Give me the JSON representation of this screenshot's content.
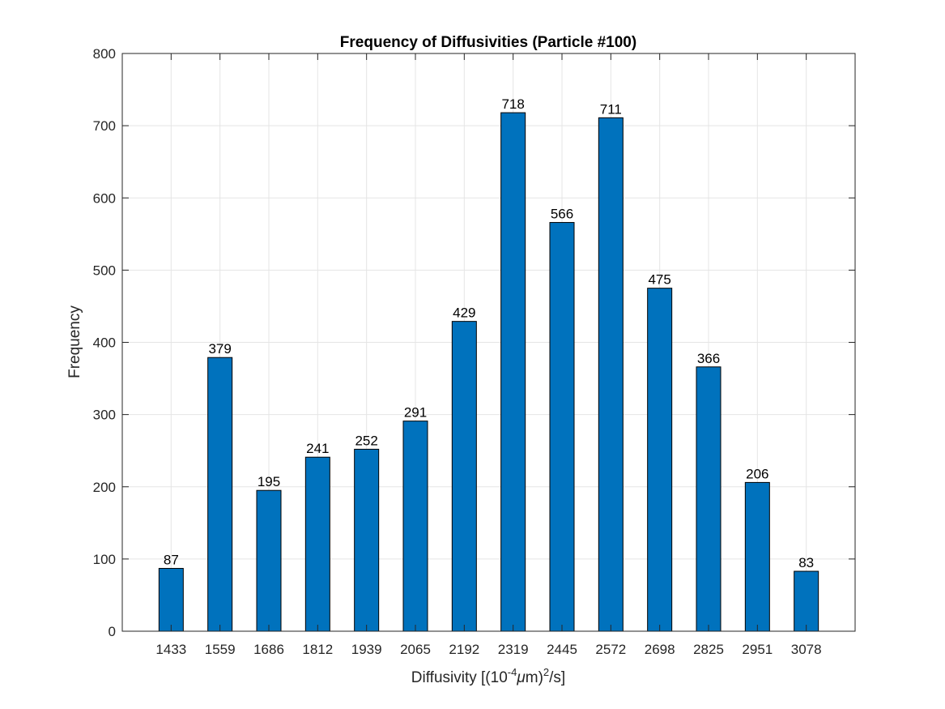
{
  "chart_data": {
    "type": "bar",
    "title": "Frequency of Diffusivities (Particle #100)",
    "xlabel": {
      "prefix": "Diffusivity [(10",
      "exponent": "-4",
      "mu": "μ",
      "middle": "m)",
      "power": "2",
      "suffix": "/s]"
    },
    "ylabel": "Frequency",
    "categories": [
      "1433",
      "1559",
      "1686",
      "1812",
      "1939",
      "2065",
      "2192",
      "2319",
      "2445",
      "2572",
      "2698",
      "2825",
      "2951",
      "3078"
    ],
    "values": [
      87,
      379,
      195,
      241,
      252,
      291,
      429,
      718,
      566,
      711,
      475,
      366,
      206,
      83
    ],
    "ylim": [
      0,
      800
    ],
    "yticks": [
      0,
      100,
      200,
      300,
      400,
      500,
      600,
      700,
      800
    ],
    "grid": true,
    "bar_color": "#0072BD",
    "bar_edge_color": "#000000",
    "grid_color": "#e5e5e5",
    "axis_color": "#262626"
  }
}
